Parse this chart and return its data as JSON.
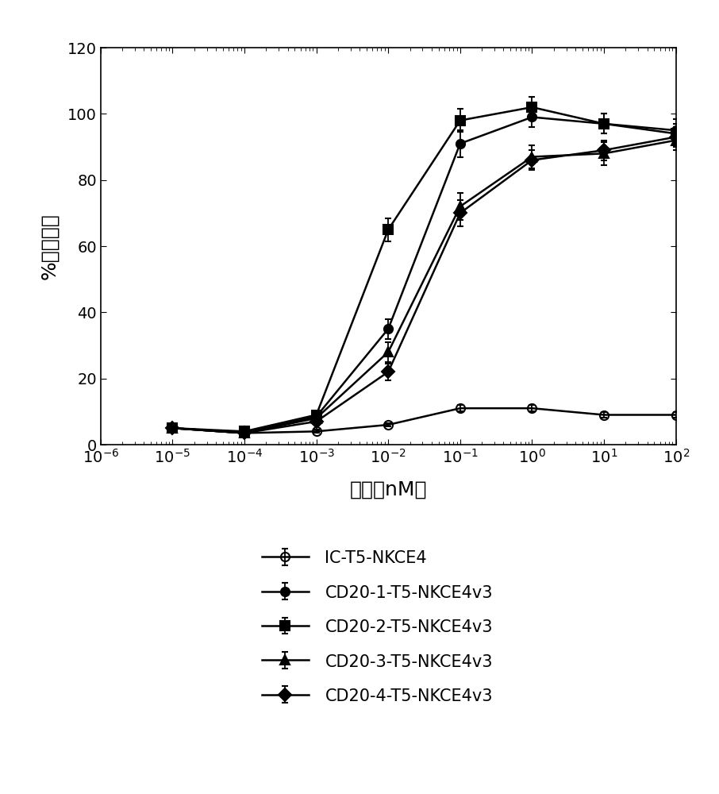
{
  "title": "",
  "xlabel": "浓度（nM）",
  "ylabel": "%细胞毒性",
  "xlim": [
    1e-06,
    100.0
  ],
  "ylim": [
    0,
    120
  ],
  "yticks": [
    0,
    20,
    40,
    60,
    80,
    100,
    120
  ],
  "xtick_values": [
    1e-06,
    1e-05,
    0.0001,
    0.001,
    0.01,
    0.1,
    1.0,
    10.0,
    100.0
  ],
  "series": [
    {
      "label": "IC-T5-NKCE4",
      "marker": "o",
      "fillstyle": "none",
      "color": "#000000",
      "x": [
        1e-05,
        0.0001,
        0.001,
        0.01,
        0.1,
        1.0,
        10.0,
        100.0
      ],
      "y": [
        5.0,
        3.5,
        4.0,
        6.0,
        11.0,
        11.0,
        9.0,
        9.0
      ],
      "yerr": [
        0.5,
        0.5,
        0.5,
        0.5,
        1.0,
        1.0,
        0.8,
        0.8
      ]
    },
    {
      "label": "CD20-1-T5-NKCE4v3",
      "marker": "o",
      "fillstyle": "full",
      "color": "#000000",
      "x": [
        1e-05,
        0.0001,
        0.001,
        0.01,
        0.1,
        1.0,
        10.0,
        100.0
      ],
      "y": [
        5.0,
        3.5,
        8.5,
        35.0,
        91.0,
        99.0,
        97.0,
        95.0
      ],
      "yerr": [
        0.5,
        0.5,
        1.0,
        3.0,
        4.0,
        3.0,
        3.0,
        3.5
      ]
    },
    {
      "label": "CD20-2-T5-NKCE4v3",
      "marker": "s",
      "fillstyle": "full",
      "color": "#000000",
      "x": [
        1e-05,
        0.0001,
        0.001,
        0.01,
        0.1,
        1.0,
        10.0,
        100.0
      ],
      "y": [
        5.0,
        4.0,
        9.0,
        65.0,
        98.0,
        102.0,
        97.0,
        94.0
      ],
      "yerr": [
        0.5,
        0.5,
        1.0,
        3.5,
        3.5,
        3.0,
        3.0,
        3.0
      ]
    },
    {
      "label": "CD20-3-T5-NKCE4v3",
      "marker": "^",
      "fillstyle": "full",
      "color": "#000000",
      "x": [
        1e-05,
        0.0001,
        0.001,
        0.01,
        0.1,
        1.0,
        10.0,
        100.0
      ],
      "y": [
        5.0,
        3.5,
        8.0,
        28.0,
        72.0,
        87.0,
        88.0,
        92.0
      ],
      "yerr": [
        0.5,
        0.5,
        1.0,
        3.0,
        4.0,
        3.5,
        3.5,
        3.0
      ]
    },
    {
      "label": "CD20-4-T5-NKCE4v3",
      "marker": "D",
      "fillstyle": "full",
      "color": "#000000",
      "x": [
        1e-05,
        0.0001,
        0.001,
        0.01,
        0.1,
        1.0,
        10.0,
        100.0
      ],
      "y": [
        5.0,
        3.5,
        7.0,
        22.0,
        70.0,
        86.0,
        89.0,
        93.0
      ],
      "yerr": [
        0.5,
        0.5,
        1.0,
        2.5,
        4.0,
        3.0,
        3.0,
        3.0
      ]
    }
  ],
  "legend_fontsize": 15,
  "axis_fontsize": 18,
  "tick_fontsize": 14,
  "linewidth": 1.8,
  "markersize": 8
}
